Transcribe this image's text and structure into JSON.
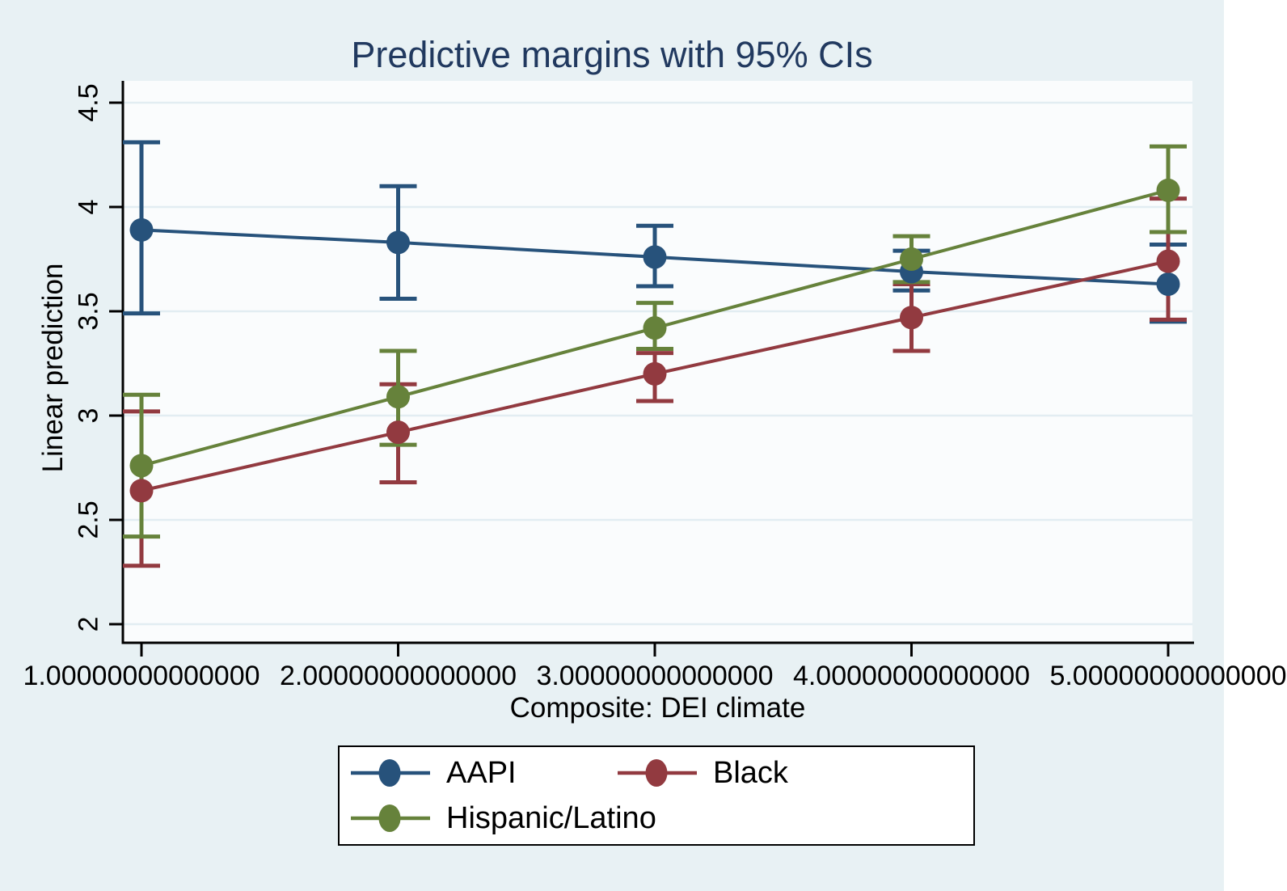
{
  "window": {
    "background_color": "#e8f1f4"
  },
  "chart_data": {
    "type": "line",
    "title": "Predictive margins with 95% CIs",
    "title_color": "#21395f",
    "xlabel": "Composite: DEI climate",
    "ylabel": "Linear prediction",
    "x": [
      1,
      2,
      3,
      4,
      5
    ],
    "xtick_labels": [
      "1.00000000000000",
      "2.00000000000000",
      "3.00000000000000",
      "4.00000000000000",
      "5.00000000000000"
    ],
    "ytick_values": [
      4.5,
      4,
      3.5,
      3,
      2.5,
      2
    ],
    "ytick_labels": [
      "4.5",
      "4",
      "3.5",
      "3",
      "2.5",
      "2"
    ],
    "xlim": [
      0.93,
      5.09
    ],
    "ylim": [
      1.91,
      4.6
    ],
    "grid": true,
    "plot_background": "#fafcfd",
    "gridline_color": "#e2edf2",
    "axis_color": "#000000",
    "error_bar_style": "95% CI with caps",
    "series": [
      {
        "name": "AAPI",
        "color": "#27527b",
        "values": [
          3.89,
          3.83,
          3.76,
          3.69,
          3.63
        ],
        "ci_low": [
          3.49,
          3.56,
          3.62,
          3.6,
          3.45
        ],
        "ci_high": [
          4.31,
          4.1,
          3.91,
          3.79,
          3.82
        ]
      },
      {
        "name": "Black",
        "color": "#923a40",
        "values": [
          2.64,
          2.92,
          3.2,
          3.47,
          3.74
        ],
        "ci_low": [
          2.28,
          2.68,
          3.07,
          3.31,
          3.46
        ],
        "ci_high": [
          3.02,
          3.15,
          3.3,
          3.63,
          4.04
        ]
      },
      {
        "name": "Hispanic/Latino",
        "color": "#66823b",
        "values": [
          2.76,
          3.09,
          3.42,
          3.75,
          4.08
        ],
        "ci_low": [
          2.42,
          2.86,
          3.32,
          3.64,
          3.88
        ],
        "ci_high": [
          3.1,
          3.31,
          3.54,
          3.86,
          4.29
        ]
      }
    ],
    "legend": {
      "position": "bottom",
      "entries": [
        "AAPI",
        "Black",
        "Hispanic/Latino"
      ]
    }
  }
}
